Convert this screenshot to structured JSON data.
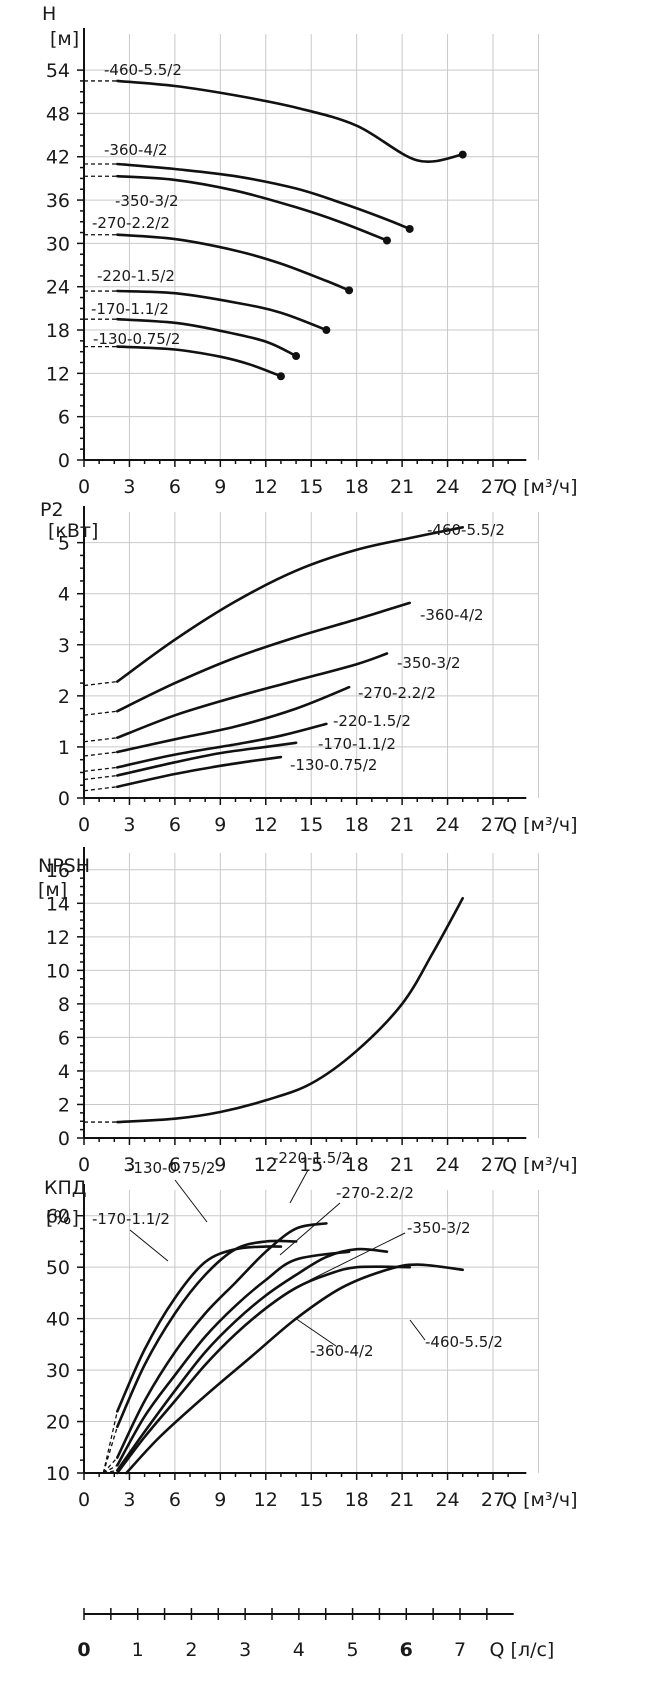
{
  "x_axis": {
    "ticks": [
      "0",
      "3",
      "6",
      "9",
      "12",
      "15",
      "18",
      "21",
      "24",
      "27"
    ],
    "q_label": "Q [м³/ч]"
  },
  "ls_axis": {
    "ticks": [
      "0",
      "1",
      "2",
      "3",
      "4",
      "5",
      "6",
      "7"
    ],
    "label": "Q [л/с]"
  },
  "chart_data": [
    {
      "type": "line",
      "ylabel_top": "H",
      "ylabel_unit": "[м]",
      "xlabel": "Q [м³/ч]",
      "xlim": [
        0,
        30
      ],
      "ylim": [
        0,
        59
      ],
      "yticks": [
        "0",
        "6",
        "12",
        "18",
        "24",
        "30",
        "36",
        "42",
        "48",
        "54"
      ],
      "grid": true,
      "series": [
        {
          "name": "-460-5.5/2",
          "x": [
            2.2,
            6,
            10,
            14,
            18,
            22,
            25
          ],
          "y": [
            52.5,
            51.8,
            50.5,
            48.8,
            46.3,
            41.5,
            42.3
          ],
          "end_dot": true
        },
        {
          "name": "-360-4/2",
          "x": [
            2.2,
            6,
            10,
            14,
            17,
            20,
            21.5
          ],
          "y": [
            41.0,
            40.3,
            39.3,
            37.6,
            35.6,
            33.3,
            32.0
          ],
          "end_dot": true
        },
        {
          "name": "-350-3/2",
          "x": [
            2.2,
            6,
            10,
            14,
            17,
            20
          ],
          "y": [
            39.3,
            38.8,
            37.3,
            35.0,
            32.9,
            30.4
          ],
          "end_dot": true
        },
        {
          "name": "-270-2.2/2",
          "x": [
            2.2,
            6,
            10,
            13,
            16,
            17.5
          ],
          "y": [
            31.2,
            30.6,
            29.0,
            27.2,
            24.8,
            23.5
          ],
          "end_dot": true
        },
        {
          "name": "-220-1.5/2",
          "x": [
            2.2,
            6,
            10,
            13,
            16
          ],
          "y": [
            23.4,
            23.1,
            21.8,
            20.4,
            18.0
          ],
          "end_dot": true
        },
        {
          "name": "-170-1.1/2",
          "x": [
            2.2,
            6,
            9,
            12,
            14
          ],
          "y": [
            19.5,
            19.0,
            17.9,
            16.4,
            14.4
          ],
          "end_dot": true
        },
        {
          "name": "-130-0.75/2",
          "x": [
            2.2,
            6,
            9,
            11,
            13
          ],
          "y": [
            15.7,
            15.3,
            14.3,
            13.2,
            11.6
          ],
          "end_dot": true
        }
      ]
    },
    {
      "type": "line",
      "ylabel_top": "P2",
      "ylabel_unit": "[кВт]",
      "xlabel": "Q [м³/ч]",
      "xlim": [
        0,
        30
      ],
      "ylim": [
        0,
        5.6
      ],
      "yticks": [
        "0",
        "1",
        "2",
        "3",
        "4",
        "5"
      ],
      "grid": true,
      "series": [
        {
          "name": "-460-5.5/2",
          "x": [
            2.2,
            6,
            10,
            14,
            18,
            22,
            25
          ],
          "y": [
            2.28,
            3.1,
            3.85,
            4.45,
            4.86,
            5.12,
            5.3
          ]
        },
        {
          "name": "-360-4/2",
          "x": [
            2.2,
            6,
            10,
            14,
            18,
            21.5
          ],
          "y": [
            1.7,
            2.25,
            2.75,
            3.15,
            3.5,
            3.82
          ]
        },
        {
          "name": "-350-3/2",
          "x": [
            2.2,
            6,
            10,
            14,
            18,
            20
          ],
          "y": [
            1.18,
            1.62,
            1.98,
            2.3,
            2.62,
            2.83
          ]
        },
        {
          "name": "-270-2.2/2",
          "x": [
            2.2,
            6,
            10,
            14,
            17.5
          ],
          "y": [
            0.9,
            1.15,
            1.4,
            1.75,
            2.17
          ]
        },
        {
          "name": "-220-1.5/2",
          "x": [
            2.2,
            6,
            10,
            13,
            16
          ],
          "y": [
            0.6,
            0.85,
            1.05,
            1.22,
            1.45
          ]
        },
        {
          "name": "-170-1.1/2",
          "x": [
            2.2,
            6,
            9,
            12,
            14
          ],
          "y": [
            0.44,
            0.7,
            0.88,
            1.0,
            1.08
          ]
        },
        {
          "name": "-130-0.75/2",
          "x": [
            2.2,
            6,
            9,
            11,
            13
          ],
          "y": [
            0.22,
            0.47,
            0.63,
            0.72,
            0.8
          ]
        }
      ]
    },
    {
      "type": "line",
      "ylabel_top": "NPSH",
      "ylabel_unit": "[м]",
      "xlabel": "Q [м³/ч]",
      "xlim": [
        0,
        30
      ],
      "ylim": [
        0,
        17
      ],
      "yticks": [
        "0",
        "2",
        "4",
        "6",
        "8",
        "10",
        "12",
        "14",
        "16"
      ],
      "grid": true,
      "series": [
        {
          "name": "",
          "x": [
            2.2,
            6,
            9,
            12,
            15,
            18,
            21,
            23,
            25
          ],
          "y": [
            0.95,
            1.15,
            1.55,
            2.25,
            3.25,
            5.2,
            8.0,
            11.0,
            14.3
          ]
        }
      ]
    },
    {
      "type": "line",
      "ylabel_top": "КПД",
      "ylabel_unit": "[%]",
      "xlabel": "Q [м³/ч]",
      "xlim": [
        0,
        30
      ],
      "ylim": [
        10,
        65
      ],
      "yticks": [
        "10",
        "20",
        "30",
        "40",
        "50",
        "60"
      ],
      "grid": true,
      "series": [
        {
          "name": "-130-0.75/2",
          "x": [
            2.2,
            4,
            6,
            8,
            10,
            12,
            13
          ],
          "y": [
            22,
            34,
            44,
            51,
            53.5,
            54,
            54
          ]
        },
        {
          "name": "-170-1.1/2",
          "x": [
            2.2,
            4,
            6,
            8,
            10,
            12,
            14
          ],
          "y": [
            19,
            31,
            41,
            48.5,
            53.5,
            55,
            55
          ]
        },
        {
          "name": "-220-1.5/2",
          "x": [
            2.2,
            4,
            6,
            8,
            10,
            12,
            14,
            16
          ],
          "y": [
            13,
            24,
            33.5,
            41,
            47,
            53,
            57.5,
            58.5
          ]
        },
        {
          "name": "-270-2.2/2",
          "x": [
            2.2,
            4,
            6,
            8,
            10,
            12,
            14,
            17.5
          ],
          "y": [
            11.5,
            21,
            29,
            36.5,
            42.5,
            47.5,
            51.5,
            53
          ]
        },
        {
          "name": "-350-3/2",
          "x": [
            2.2,
            4,
            6,
            8,
            10,
            12,
            14,
            16,
            18,
            20
          ],
          "y": [
            10.5,
            18,
            26,
            33.5,
            39.5,
            44.5,
            48.5,
            52,
            53.5,
            53
          ]
        },
        {
          "name": "-360-4/2",
          "x": [
            2.2,
            4,
            6,
            8,
            10,
            12,
            14,
            16,
            18,
            21.5
          ],
          "y": [
            10,
            17,
            24,
            31,
            37,
            42,
            46,
            48.5,
            50,
            50
          ]
        },
        {
          "name": "-460-5.5/2",
          "x": [
            2.8,
            5,
            8,
            11,
            14,
            17,
            20,
            22,
            25
          ],
          "y": [
            10,
            17,
            25,
            32.5,
            40,
            46,
            49.5,
            50.5,
            49.5
          ]
        }
      ]
    }
  ]
}
